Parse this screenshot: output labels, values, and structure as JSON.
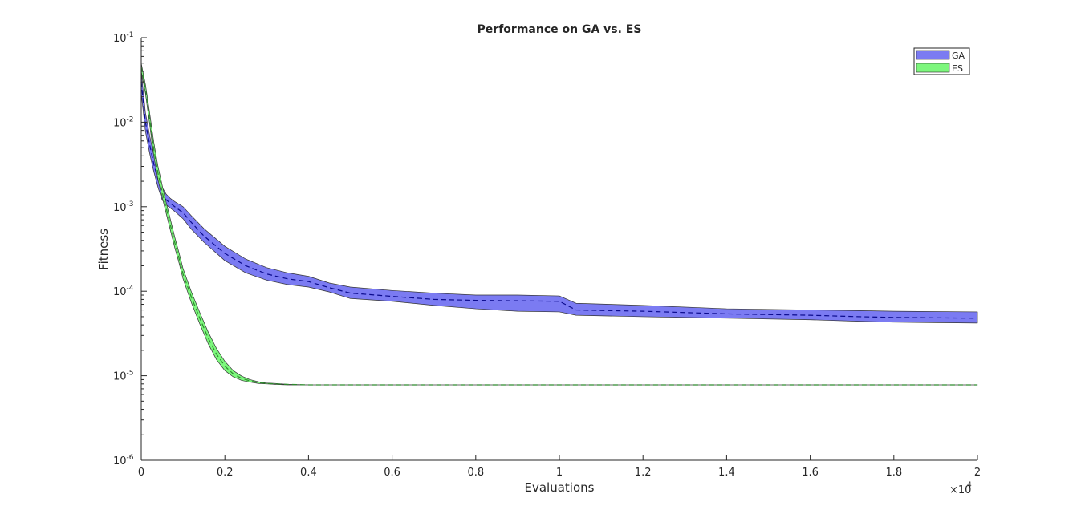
{
  "chart_data": {
    "type": "area",
    "title": "Performance on GA vs. ES",
    "xlabel": "Evaluations",
    "ylabel": "Fitness",
    "x_scale": "linear",
    "y_scale": "log",
    "xlim": [
      0,
      20000
    ],
    "ylim": [
      1e-06,
      0.1
    ],
    "x_ticks": [
      "0",
      "0.2",
      "0.4",
      "0.6",
      "0.8",
      "1",
      "1.2",
      "1.4",
      "1.6",
      "1.8",
      "2"
    ],
    "x_tick_values": [
      0,
      2000,
      4000,
      6000,
      8000,
      10000,
      12000,
      14000,
      16000,
      18000,
      20000
    ],
    "x_multiplier": "×10",
    "x_multiplier_exp": "4",
    "y_ticks": [
      {
        "base": "10",
        "exp": "-6",
        "value": 1e-06
      },
      {
        "base": "10",
        "exp": "-5",
        "value": 1e-05
      },
      {
        "base": "10",
        "exp": "-4",
        "value": 0.0001
      },
      {
        "base": "10",
        "exp": "-3",
        "value": 0.001
      },
      {
        "base": "10",
        "exp": "-2",
        "value": 0.01
      },
      {
        "base": "10",
        "exp": "-1",
        "value": 0.1
      }
    ],
    "grid": false,
    "legend_position": "top-right",
    "series": [
      {
        "name": "GA",
        "fill_color": "#7b7bf2",
        "line_color": "#0a0a8c",
        "line_style": "dashed",
        "x": [
          0,
          100,
          200,
          300,
          400,
          500,
          600,
          700,
          800,
          1000,
          1200,
          1500,
          2000,
          2500,
          3000,
          3500,
          4000,
          4500,
          5000,
          6000,
          7000,
          8000,
          9000,
          10000,
          10400,
          12000,
          14000,
          16000,
          17200,
          18000,
          20000
        ],
        "mean": [
          0.03,
          0.01,
          0.0055,
          0.0032,
          0.0021,
          0.0014,
          0.0012,
          0.0011,
          0.001,
          0.00085,
          0.00065,
          0.00045,
          0.00028,
          0.0002,
          0.00016,
          0.00014,
          0.00013,
          0.00011,
          9.5e-05,
          8.7e-05,
          8e-05,
          7.8e-05,
          7.7e-05,
          7.6e-05,
          6e-05,
          5.8e-05,
          5.4e-05,
          5.2e-05,
          5e-05,
          4.9e-05,
          4.8e-05
        ],
        "upper": [
          0.04,
          0.013,
          0.007,
          0.0041,
          0.0026,
          0.0017,
          0.0014,
          0.00125,
          0.00115,
          0.001,
          0.00078,
          0.00055,
          0.00034,
          0.00024,
          0.00019,
          0.000165,
          0.00015,
          0.000125,
          0.000112,
          0.000102,
          9.5e-05,
          9e-05,
          9e-05,
          8.8e-05,
          7.2e-05,
          6.8e-05,
          6.2e-05,
          6e-05,
          5.9e-05,
          5.8e-05,
          5.7e-05
        ],
        "lower": [
          0.022,
          0.0078,
          0.0043,
          0.0026,
          0.0017,
          0.0012,
          0.00105,
          0.00096,
          0.00088,
          0.00072,
          0.00054,
          0.00038,
          0.00023,
          0.000165,
          0.000135,
          0.00012,
          0.000112,
          9.8e-05,
          8.2e-05,
          7.6e-05,
          6.8e-05,
          6.2e-05,
          5.8e-05,
          5.7e-05,
          5.2e-05,
          5e-05,
          4.8e-05,
          4.6e-05,
          4.4e-05,
          4.3e-05,
          4.2e-05
        ]
      },
      {
        "name": "ES",
        "fill_color": "#7df77d",
        "line_color": "#2e8b2e",
        "line_style": "dashed",
        "x": [
          0,
          100,
          200,
          300,
          400,
          500,
          600,
          700,
          800,
          900,
          1000,
          1200,
          1400,
          1600,
          1800,
          2000,
          2200,
          2400,
          2600,
          2800,
          3000,
          3200,
          3500,
          4000,
          5000,
          10000,
          15000,
          20000
        ],
        "mean": [
          0.045,
          0.025,
          0.011,
          0.0048,
          0.0025,
          0.0015,
          0.00095,
          0.0006,
          0.00038,
          0.00025,
          0.00016,
          8.5e-05,
          4.8e-05,
          2.8e-05,
          1.8e-05,
          1.3e-05,
          1.05e-05,
          9.3e-06,
          8.7e-06,
          8.3e-06,
          8.1e-06,
          8e-06,
          7.9e-06,
          7.8e-06,
          7.8e-06,
          7.8e-06,
          7.8e-06,
          7.8e-06
        ],
        "upper": [
          0.05,
          0.028,
          0.013,
          0.0058,
          0.003,
          0.0018,
          0.0011,
          0.0007,
          0.00044,
          0.00029,
          0.000185,
          9.8e-05,
          5.6e-05,
          3.3e-05,
          2.1e-05,
          1.48e-05,
          1.15e-05,
          9.9e-06,
          9e-06,
          8.5e-06,
          8.2e-06,
          8.1e-06,
          7.9e-06,
          7.8e-06,
          7.8e-06,
          7.8e-06,
          7.8e-06,
          7.8e-06
        ],
        "lower": [
          0.04,
          0.022,
          0.0095,
          0.004,
          0.0021,
          0.0013,
          0.00082,
          0.00052,
          0.00033,
          0.00022,
          0.00014,
          7.3e-05,
          4.1e-05,
          2.4e-05,
          1.55e-05,
          1.15e-05,
          9.7e-06,
          8.8e-06,
          8.4e-06,
          8.1e-06,
          8e-06,
          7.9e-06,
          7.8e-06,
          7.8e-06,
          7.8e-06,
          7.8e-06,
          7.8e-06,
          7.8e-06
        ]
      }
    ]
  }
}
